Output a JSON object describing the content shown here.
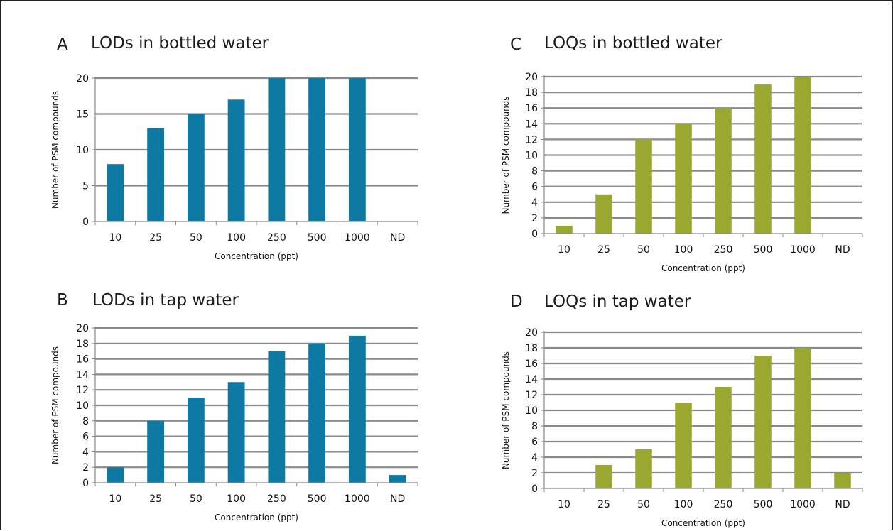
{
  "chart_data": [
    {
      "panel_letter": "A",
      "title": "LODs in bottled water",
      "type": "bar",
      "categories": [
        "10",
        "25",
        "50",
        "100",
        "250",
        "500",
        "1000",
        "ND"
      ],
      "values": [
        8,
        13,
        15,
        17,
        20,
        20,
        20,
        0
      ],
      "xlabel": "Concentration (ppt)",
      "ylabel": "Number of PSM compounds",
      "ylim": [
        0,
        20
      ],
      "yticks": [
        0,
        5,
        10,
        15,
        20
      ],
      "color": "#0e7aa3",
      "grid": true
    },
    {
      "panel_letter": "B",
      "title": "LODs in tap water",
      "type": "bar",
      "categories": [
        "10",
        "25",
        "50",
        "100",
        "250",
        "500",
        "1000",
        "ND"
      ],
      "values": [
        2,
        8,
        11,
        13,
        17,
        18,
        19,
        1
      ],
      "xlabel": "Concentration (ppt)",
      "ylabel": "Number of PSM compounds",
      "ylim": [
        0,
        20
      ],
      "yticks": [
        0,
        2,
        4,
        6,
        8,
        10,
        12,
        14,
        16,
        18,
        20
      ],
      "color": "#0e7aa3",
      "grid": true
    },
    {
      "panel_letter": "C",
      "title": "LOQs in bottled water",
      "type": "bar",
      "categories": [
        "10",
        "25",
        "50",
        "100",
        "250",
        "500",
        "1000",
        "ND"
      ],
      "values": [
        1,
        5,
        12,
        14,
        16,
        19,
        20,
        0
      ],
      "xlabel": "Concentration (ppt)",
      "ylabel": "Number of PSM compounds",
      "ylim": [
        0,
        20
      ],
      "yticks": [
        0,
        2,
        4,
        6,
        8,
        10,
        12,
        14,
        16,
        18,
        20
      ],
      "color": "#9aa832",
      "grid": true
    },
    {
      "panel_letter": "D",
      "title": "LOQs in tap water",
      "type": "bar",
      "categories": [
        "10",
        "25",
        "50",
        "100",
        "250",
        "500",
        "1000",
        "ND"
      ],
      "values": [
        0,
        3,
        5,
        11,
        13,
        17,
        18,
        2
      ],
      "xlabel": "Concentration (ppt)",
      "ylabel": "Number of PSM compounds",
      "ylim": [
        0,
        20
      ],
      "yticks": [
        0,
        2,
        4,
        6,
        8,
        10,
        12,
        14,
        16,
        18,
        20
      ],
      "color": "#9aa832",
      "grid": true
    }
  ]
}
